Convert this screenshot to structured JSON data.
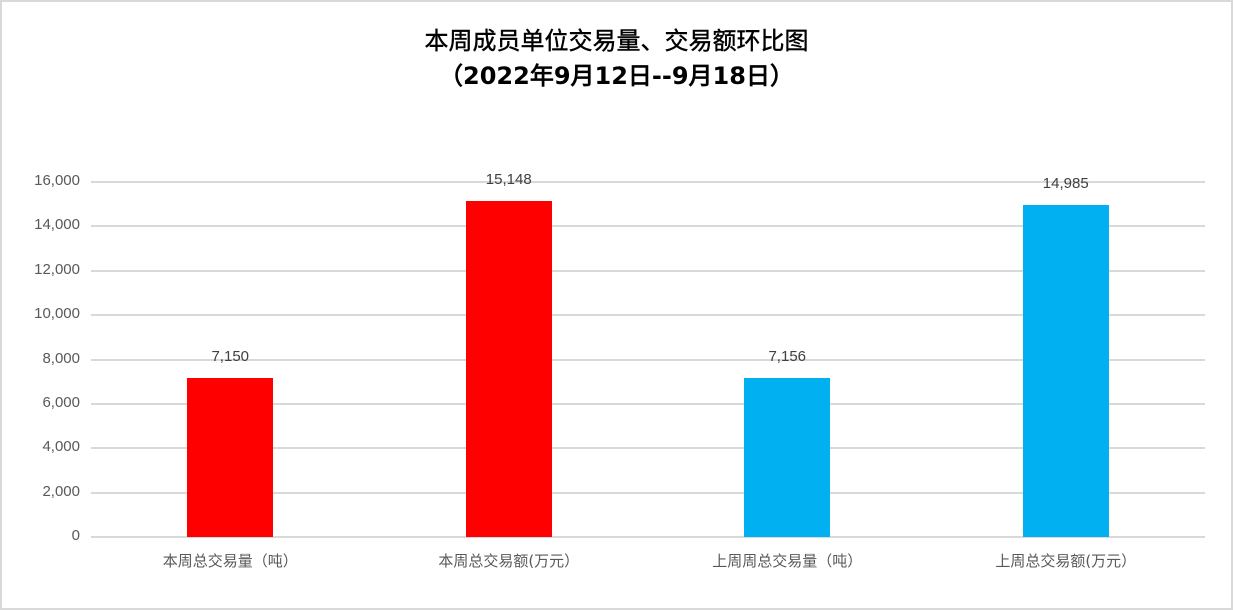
{
  "chart_data": {
    "type": "bar",
    "title": "本周成员单位交易量、交易额环比图",
    "subtitle": "（2022年9月12日--9月18日）",
    "categories": [
      "本周总交易量（吨）",
      "本周总交易额(万元）",
      "上周周总交易量（吨）",
      "上周总交易额(万元）"
    ],
    "values": [
      7150,
      15148,
      7156,
      14985
    ],
    "value_labels": [
      "7,150",
      "15,148",
      "7,156",
      "14,985"
    ],
    "colors": [
      "#ff0000",
      "#ff0000",
      "#00b0f0",
      "#00b0f0"
    ],
    "xlabel": "",
    "ylabel": "",
    "ylim": [
      0,
      16000
    ],
    "yticks": [
      "0",
      "2,000",
      "4,000",
      "6,000",
      "8,000",
      "10,000",
      "12,000",
      "14,000",
      "16,000"
    ],
    "grid": true,
    "legend": "none"
  }
}
